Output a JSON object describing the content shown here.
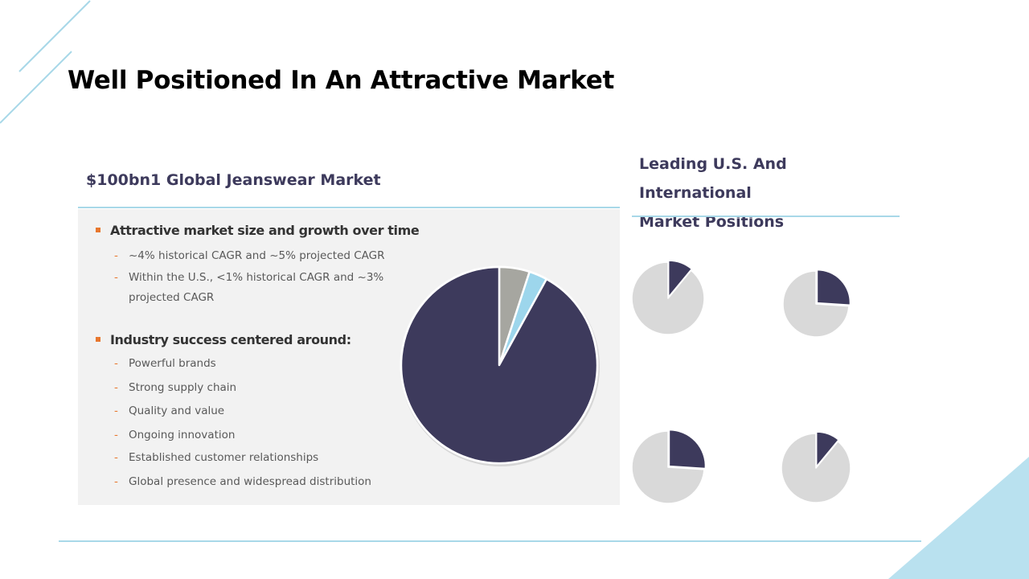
{
  "title": "Well Positioned In An Attractive Market",
  "left_section": {
    "heading": "$100bn1 Global Jeanswear Market",
    "groups": [
      {
        "heading": "Attractive market size and growth over time",
        "items": [
          "~4% historical CAGR and ~5% projected CAGR",
          "Within the U.S., <1% historical CAGR and ~3%",
          "projected CAGR"
        ]
      },
      {
        "heading": "Industry success centered around:",
        "items": [
          "Powerful brands",
          "Strong supply chain",
          "Quality and value",
          "Ongoing innovation",
          "Established customer relationships",
          "Global presence and widespread distribution"
        ]
      }
    ]
  },
  "right_section": {
    "heading_line1": "Leading U.S. And International",
    "heading_line2": "Market Positions"
  },
  "colors": {
    "navy": "#3d3a5c",
    "gray": "#a6a6a0",
    "light_blue": "#9dd6ec",
    "light_gray": "#d9d9d9",
    "accent": "#e8772e",
    "rule": "#a8d8e8"
  },
  "chart_data": [
    {
      "type": "pie",
      "title": "Global Jeanswear Market",
      "slices": [
        {
          "value": 5,
          "color": "#a6a6a0"
        },
        {
          "value": 3,
          "color": "#9dd6ec"
        },
        {
          "value": 92,
          "color": "#3d3a5c"
        }
      ]
    },
    {
      "type": "pie",
      "slices": [
        {
          "value": 11,
          "color": "#3d3a5c"
        },
        {
          "value": 89,
          "color": "#d9d9d9"
        }
      ]
    },
    {
      "type": "pie",
      "slices": [
        {
          "value": 26,
          "color": "#3d3a5c"
        },
        {
          "value": 74,
          "color": "#d9d9d9"
        }
      ]
    },
    {
      "type": "pie",
      "slices": [
        {
          "value": 26,
          "color": "#3d3a5c"
        },
        {
          "value": 74,
          "color": "#d9d9d9"
        }
      ]
    },
    {
      "type": "pie",
      "slices": [
        {
          "value": 11,
          "color": "#3d3a5c"
        },
        {
          "value": 89,
          "color": "#d9d9d9"
        }
      ]
    }
  ]
}
